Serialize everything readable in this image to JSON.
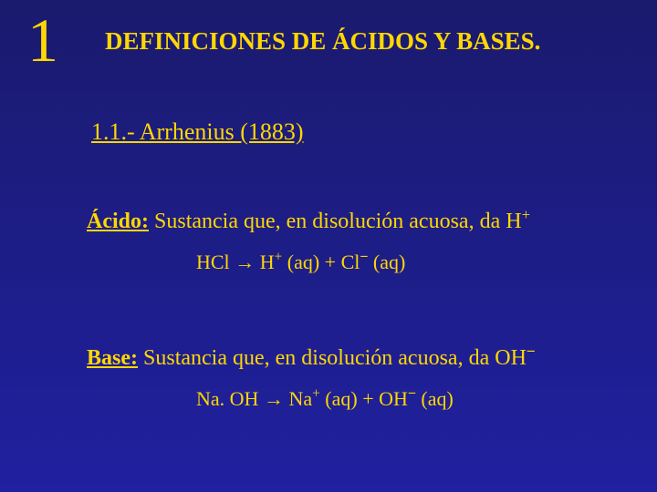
{
  "slide": {
    "number": "1",
    "title": "DEFINICIONES DE ÁCIDOS Y BASES.",
    "subtitle": "1.1.- Arrhenius (1883)",
    "acid": {
      "label": "Ácido:",
      "definition": "Sustancia que, en disolución acuosa, da H",
      "sup": "+",
      "eq_left": "HCl",
      "arrow": "→",
      "eq_right_1": "H",
      "eq_right_1_sup": "+",
      "eq_right_2": "(aq) + Cl",
      "eq_right_2_sup": "−",
      "eq_right_3": " (aq)"
    },
    "base": {
      "label": "Base:",
      "definition": "Sustancia que, en disolución acuosa, da OH",
      "sup": "−",
      "eq_left": "Na. OH",
      "arrow": "→",
      "eq_right_1": "Na",
      "eq_right_1_sup": "+",
      "eq_right_2": "(aq) + OH",
      "eq_right_2_sup": "−",
      "eq_right_3": " (aq)"
    }
  },
  "colors": {
    "background_top": "#1a1a6e",
    "background_bottom": "#2020a0",
    "text": "#ffd700"
  }
}
